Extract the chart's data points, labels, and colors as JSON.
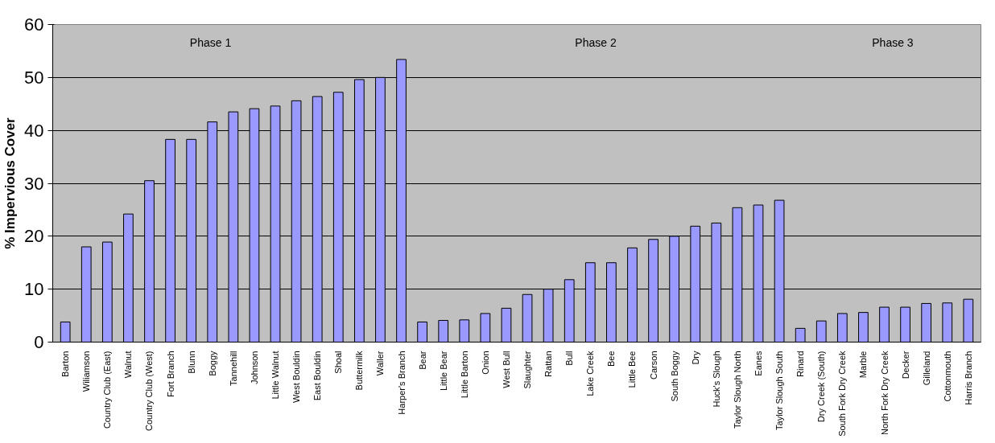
{
  "chart_data": {
    "type": "bar",
    "ylabel": "% Impervious Cover",
    "categories": [
      "Barton",
      "Wiliamson",
      "Country Club (East)",
      "Walnut",
      "Country Club (West)",
      "Fort Branch",
      "Blunn",
      "Boggy",
      "Tannehill",
      "Johnson",
      "Little Walnut",
      "West Bouldin",
      "East Bouldin",
      "Shoal",
      "Buttermilk",
      "Waller",
      "Harper's Branch",
      "Bear",
      "Little Bear",
      "Little Barton",
      "Onion",
      "West Bull",
      "Slaughter",
      "Rattan",
      "Bull",
      "Lake Creek",
      "Bee",
      "Little Bee",
      "Carson",
      "South Boggy",
      "Dry",
      "Huck's Slough",
      "Taylor Slough North",
      "Eanes",
      "Taylor Slough South",
      "Rinard",
      "Dry Creek (South)",
      "South Fork Dry Creek",
      "Marble",
      "North Fork Dry Creek",
      "Decker",
      "Gilleland",
      "Cottonmouth",
      "Harris Branch"
    ],
    "values": [
      3.8,
      18,
      18.9,
      24.2,
      30.5,
      38.3,
      38.3,
      41.6,
      43.5,
      44.1,
      44.6,
      45.6,
      46.4,
      47.2,
      49.6,
      50.0,
      53.4,
      3.8,
      4.1,
      4.2,
      5.4,
      6.4,
      9,
      10,
      11.8,
      15,
      15,
      17.8,
      19.4,
      20,
      21.9,
      22.5,
      25.4,
      25.9,
      26.8,
      2.6,
      4,
      5.4,
      5.6,
      6.6,
      6.6,
      7.3,
      7.4,
      8.1
    ],
    "color": "#9999ff",
    "ylim": [
      0,
      60
    ],
    "yticks": [
      0,
      10,
      20,
      30,
      40,
      50,
      60
    ],
    "grid": "y",
    "annotations": [
      "Phase 1",
      "Phase 2",
      "Phase 3"
    ]
  }
}
